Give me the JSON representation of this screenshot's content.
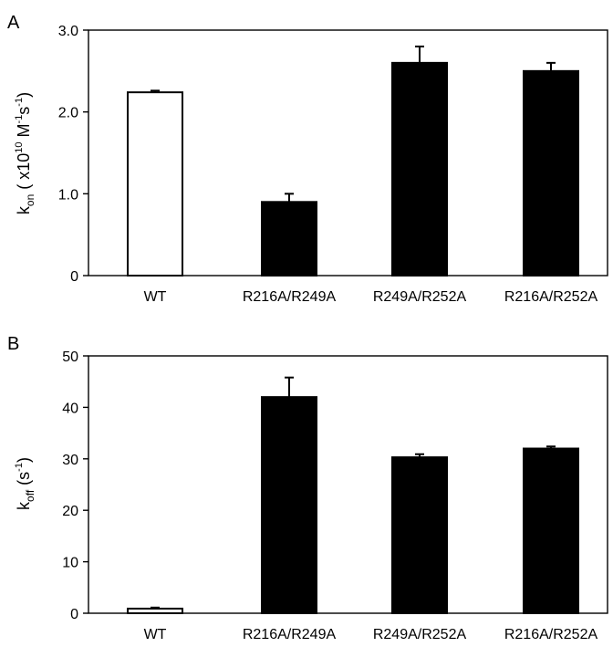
{
  "chart_data": [
    {
      "panel": "A",
      "type": "bar",
      "categories": [
        "WT",
        "R216A/R249A",
        "R249A/R252A",
        "R216A/R252A"
      ],
      "values": [
        2.24,
        0.9,
        2.6,
        2.5
      ],
      "errors": [
        0.02,
        0.1,
        0.2,
        0.1
      ],
      "fills": [
        "#ffffff",
        "#000000",
        "#000000",
        "#000000"
      ],
      "ylim": [
        0,
        3
      ],
      "yticks": [
        0,
        1,
        2,
        3
      ],
      "ytick_labels": [
        "0",
        "1.0",
        "2.0",
        "3.0"
      ],
      "ylabel": {
        "main": "k",
        "sub": "on",
        "prefix": " ( x10",
        "exp": "10",
        "unit1": " M",
        "unit1_exp": "-1",
        "unit2": "s",
        "unit2_exp": "-1",
        "suffix": ")"
      },
      "grid": false,
      "legend": "none"
    },
    {
      "panel": "B",
      "type": "bar",
      "categories": [
        "WT",
        "R216A/R249A",
        "R249A/R252A",
        "R216A/R252A"
      ],
      "values": [
        0.9,
        42,
        30.3,
        32
      ],
      "errors": [
        0.2,
        3.8,
        0.6,
        0.4
      ],
      "fills": [
        "#ffffff",
        "#000000",
        "#000000",
        "#000000"
      ],
      "ylim": [
        0,
        50
      ],
      "yticks": [
        0,
        10,
        20,
        30,
        40,
        50
      ],
      "ytick_labels": [
        "0",
        "10",
        "20",
        "30",
        "40",
        "50"
      ],
      "ylabel": {
        "main": "k",
        "sub": "off",
        "prefix": " (s",
        "exp": "-1",
        "suffix": ")"
      },
      "grid": false,
      "legend": "none"
    }
  ]
}
